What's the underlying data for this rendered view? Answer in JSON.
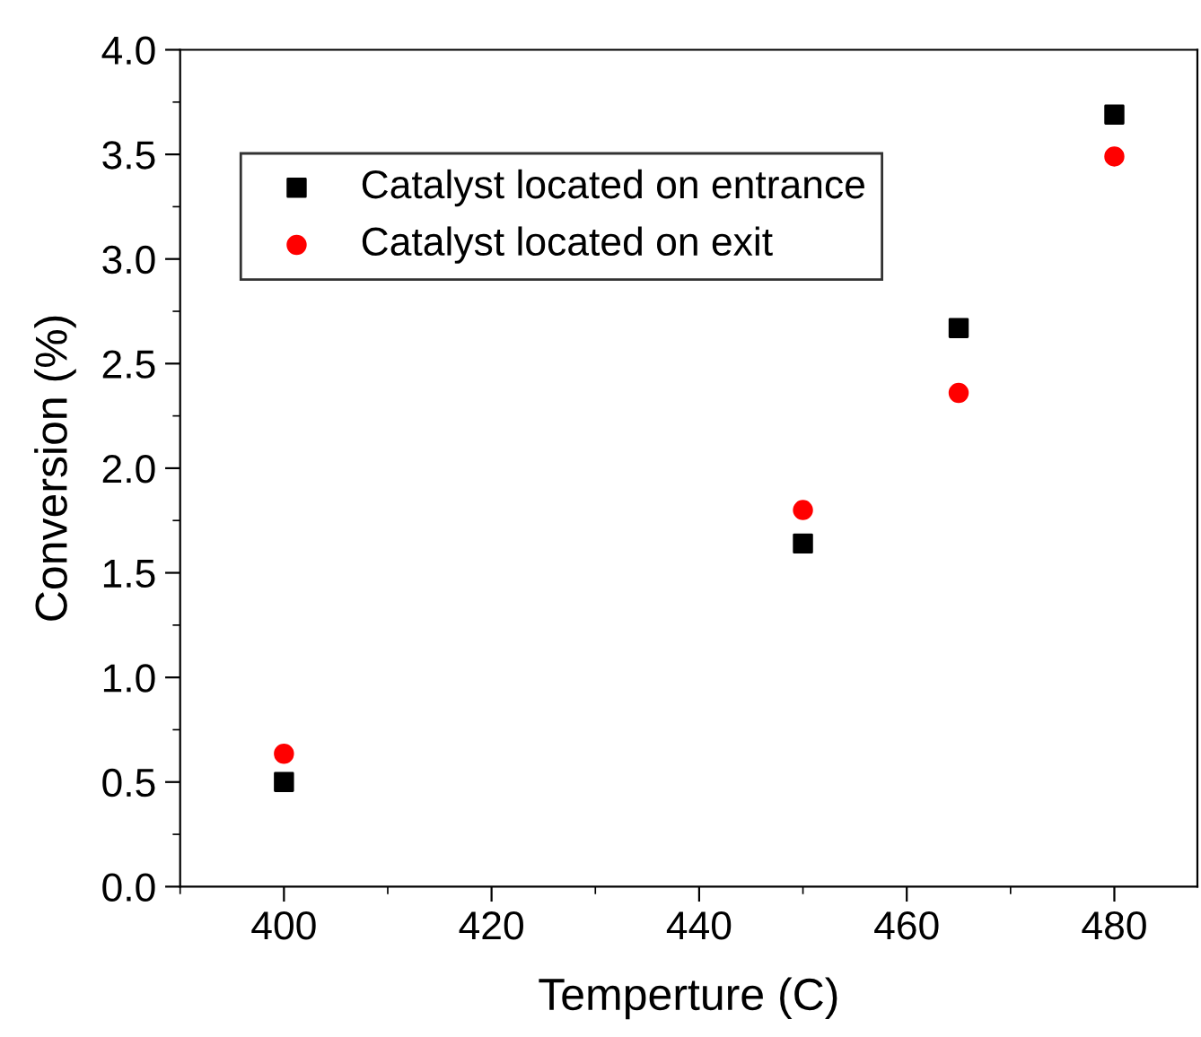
{
  "chart_data": {
    "type": "scatter",
    "xlabel": "Temperture (C)",
    "ylabel": "Conversion (%)",
    "x": [
      400,
      450,
      465,
      480
    ],
    "series": [
      {
        "name": "Catalyst located on entrance",
        "color": "#000000",
        "marker": "square",
        "values": [
          0.5,
          1.64,
          2.67,
          3.69
        ]
      },
      {
        "name": "Catalyst located on exit",
        "color": "#ff0000",
        "marker": "circle",
        "values": [
          0.635,
          1.8,
          2.36,
          3.49
        ]
      }
    ],
    "xlim": [
      390,
      488
    ],
    "xticks": [
      400,
      420,
      440,
      460,
      480
    ],
    "ylim": [
      0,
      4.0
    ],
    "yticks": [
      {
        "value": 0,
        "label": "0.0"
      },
      {
        "value": 0.5,
        "label": "0.5"
      },
      {
        "value": 1,
        "label": "1.0"
      },
      {
        "value": 1.5,
        "label": "1.5"
      },
      {
        "value": 2,
        "label": "2.0"
      },
      {
        "value": 2.5,
        "label": "2.5"
      },
      {
        "value": 3,
        "label": "3.0"
      },
      {
        "value": 3.5,
        "label": "3.5"
      },
      {
        "value": 4,
        "label": "4.0"
      }
    ],
    "grid": false,
    "legend": "top left"
  }
}
